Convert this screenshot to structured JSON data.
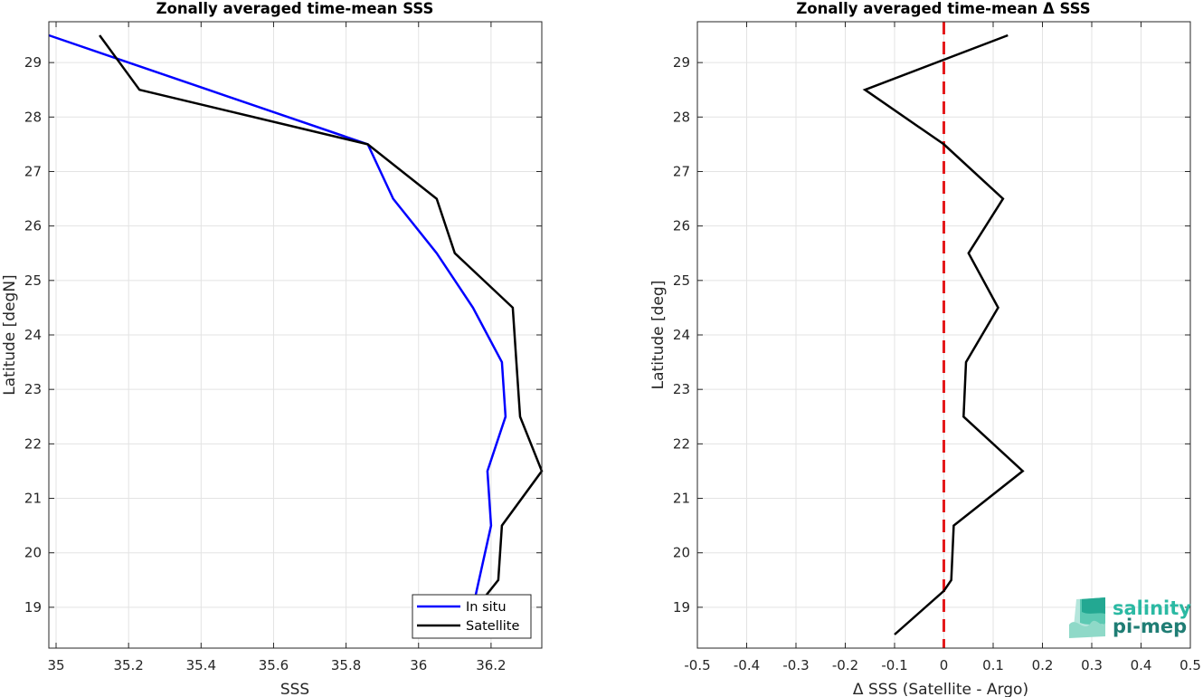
{
  "chart_data": [
    {
      "type": "line",
      "title": "Zonally averaged time-mean SSS",
      "xlabel": "SSS",
      "ylabel": "Latitude [degN]",
      "xlim": [
        34.98,
        36.34
      ],
      "ylim": [
        18.25,
        29.75
      ],
      "xticks": [
        "35",
        "35.2",
        "35.4",
        "35.6",
        "35.8",
        "36",
        "36.2"
      ],
      "yticks": [
        "19",
        "20",
        "21",
        "22",
        "23",
        "24",
        "25",
        "26",
        "27",
        "28",
        "29"
      ],
      "grid": true,
      "legend": "bottom-right",
      "series": [
        {
          "name": "In situ",
          "color": "#0000ff",
          "x": [
            36.15,
            36.2,
            36.19,
            36.24,
            36.23,
            36.15,
            36.05,
            35.93,
            35.86,
            35.42,
            34.98
          ],
          "y": [
            19.0,
            20.5,
            21.5,
            22.5,
            23.5,
            24.5,
            25.5,
            26.5,
            27.5,
            28.5,
            29.5
          ]
        },
        {
          "name": "Satellite",
          "color": "#000000",
          "x": [
            36.16,
            36.22,
            36.23,
            36.34,
            36.28,
            36.27,
            36.26,
            36.1,
            36.05,
            35.86,
            35.23,
            35.12
          ],
          "y": [
            19.0,
            19.5,
            20.5,
            21.5,
            22.5,
            23.5,
            24.5,
            25.5,
            26.5,
            27.5,
            28.5,
            29.5
          ]
        }
      ]
    },
    {
      "type": "line",
      "title": "Zonally averaged time-mean Δ SSS",
      "xlabel": "Δ SSS (Satellite - Argo)",
      "ylabel": "Latitude [deg]",
      "xlim": [
        -0.5,
        0.5
      ],
      "ylim": [
        18.25,
        29.75
      ],
      "xticks": [
        "-0.5",
        "-0.4",
        "-0.3",
        "-0.2",
        "-0.1",
        "0",
        "0.1",
        "0.2",
        "0.3",
        "0.4",
        "0.5"
      ],
      "yticks": [
        "19",
        "20",
        "21",
        "22",
        "23",
        "24",
        "25",
        "26",
        "27",
        "28",
        "29"
      ],
      "grid": true,
      "reference_line": {
        "x": 0,
        "color": "#e41a1c",
        "style": "dashed"
      },
      "series": [
        {
          "color": "#000000",
          "x": [
            -0.1,
            0.0,
            0.015,
            0.02,
            0.16,
            0.04,
            0.045,
            0.11,
            0.05,
            0.12,
            0.0,
            -0.16,
            0.13
          ],
          "y": [
            18.5,
            19.3,
            19.5,
            20.5,
            21.5,
            22.5,
            23.5,
            24.5,
            25.5,
            26.5,
            27.5,
            28.5,
            29.5
          ]
        }
      ]
    }
  ],
  "logo": {
    "line1": "salinity",
    "line2": "pi-mep"
  }
}
